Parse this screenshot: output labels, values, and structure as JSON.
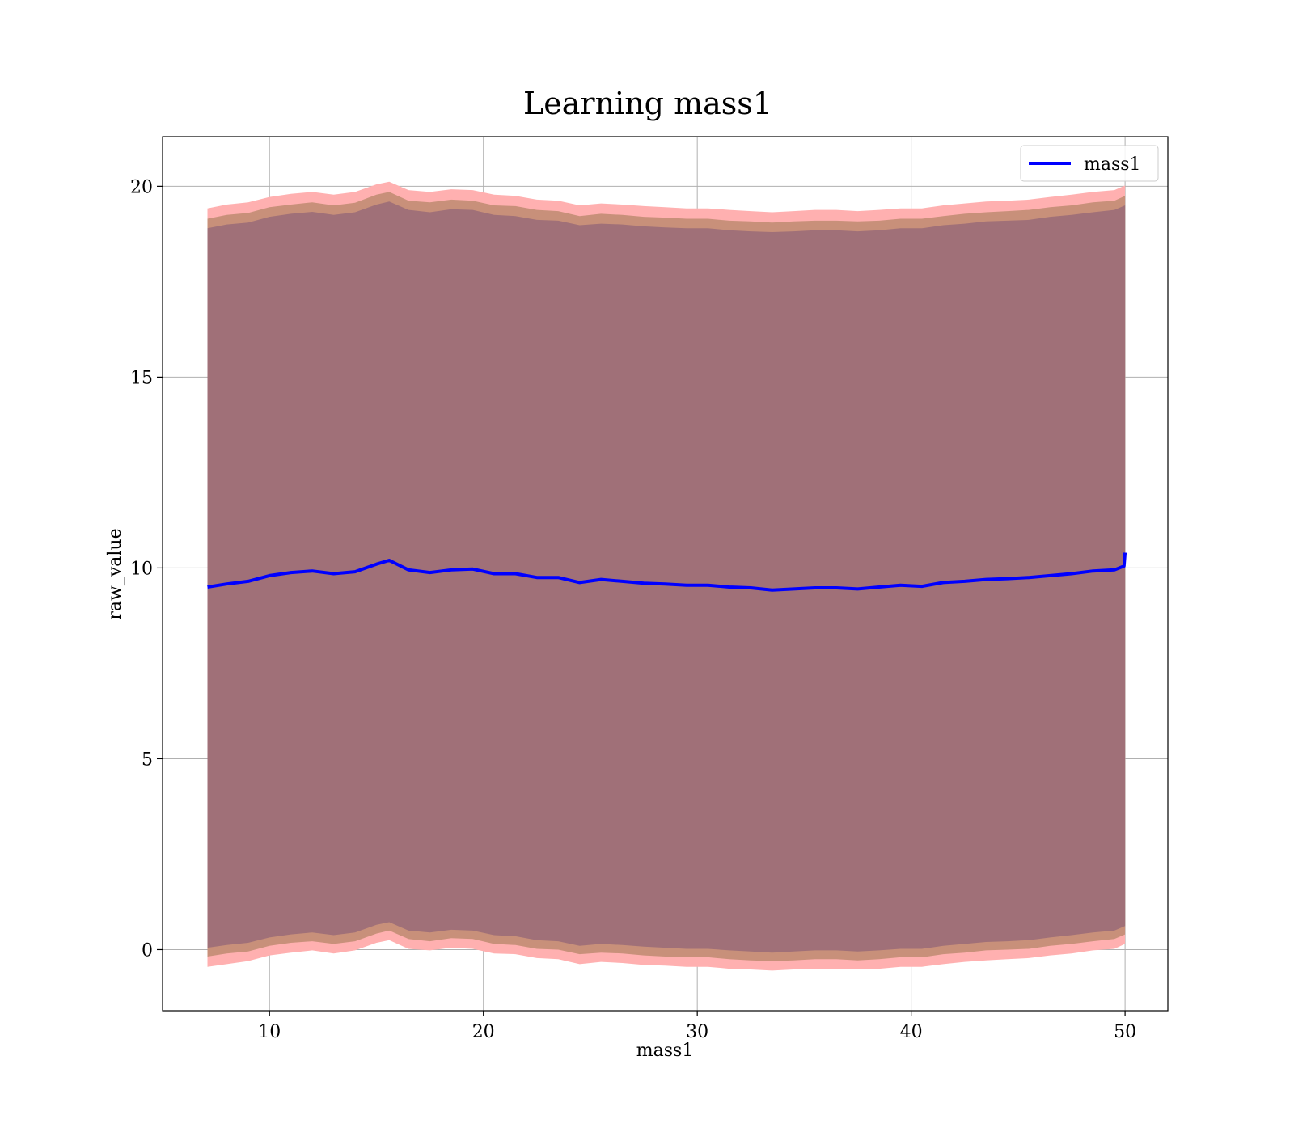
{
  "chart_data": {
    "type": "area",
    "title": "Learning mass1",
    "xlabel": "mass1",
    "ylabel": "raw_value",
    "xlim": [
      5,
      52
    ],
    "ylim": [
      -1.6,
      21.3
    ],
    "xticks": [
      10,
      20,
      30,
      40,
      50
    ],
    "yticks": [
      0,
      5,
      10,
      15,
      20
    ],
    "grid": true,
    "legend": {
      "placement": "top-right",
      "entries": [
        "mass1"
      ]
    },
    "colors": {
      "line": "#0000ff",
      "band_outer": "#ffb0b0",
      "band_middle": "#c8907a",
      "band_inner": "#a07078",
      "grid": "#b0b0b0"
    },
    "series": [
      {
        "name": "mass1",
        "x": [
          7.1,
          8,
          9,
          10,
          11,
          12,
          13,
          14,
          15,
          15.6,
          16.5,
          17.5,
          18.5,
          19.5,
          20.5,
          21.5,
          22.5,
          23.5,
          24.5,
          25.5,
          26.5,
          27.5,
          28.5,
          29.5,
          30.5,
          31.5,
          32.5,
          33.5,
          34.5,
          35.5,
          36.5,
          37.5,
          38.5,
          39.5,
          40.5,
          41.5,
          42.5,
          43.5,
          44.5,
          45.5,
          46.5,
          47.5,
          48.5,
          49.5,
          49.95,
          50
        ],
        "y": [
          9.5,
          9.58,
          9.65,
          9.8,
          9.88,
          9.92,
          9.85,
          9.9,
          10.1,
          10.2,
          9.95,
          9.88,
          9.95,
          9.97,
          9.85,
          9.85,
          9.75,
          9.75,
          9.62,
          9.7,
          9.65,
          9.6,
          9.58,
          9.55,
          9.55,
          9.5,
          9.48,
          9.42,
          9.45,
          9.48,
          9.48,
          9.45,
          9.5,
          9.55,
          9.52,
          9.62,
          9.65,
          9.7,
          9.72,
          9.75,
          9.8,
          9.85,
          9.92,
          9.95,
          10.05,
          10.4
        ]
      }
    ],
    "bands": [
      {
        "x": [
          7.1,
          8,
          9,
          10,
          11,
          12,
          13,
          14,
          15,
          15.6,
          16.5,
          17.5,
          18.5,
          19.5,
          20.5,
          21.5,
          22.5,
          23.5,
          24.5,
          25.5,
          26.5,
          27.5,
          28.5,
          29.5,
          30.5,
          31.5,
          32.5,
          33.5,
          34.5,
          35.5,
          36.5,
          37.5,
          38.5,
          39.5,
          40.5,
          41.5,
          42.5,
          43.5,
          44.5,
          45.5,
          46.5,
          47.5,
          48.5,
          49.5,
          50
        ],
        "outer_upper": [
          19.42,
          19.52,
          19.58,
          19.72,
          19.8,
          19.85,
          19.78,
          19.85,
          20.05,
          20.12,
          19.9,
          19.85,
          19.92,
          19.9,
          19.78,
          19.75,
          19.65,
          19.62,
          19.5,
          19.55,
          19.52,
          19.48,
          19.45,
          19.42,
          19.42,
          19.38,
          19.35,
          19.32,
          19.35,
          19.38,
          19.38,
          19.35,
          19.38,
          19.42,
          19.42,
          19.5,
          19.55,
          19.6,
          19.62,
          19.65,
          19.72,
          19.78,
          19.85,
          19.9,
          20.02
        ],
        "middle_upper": [
          19.15,
          19.25,
          19.3,
          19.45,
          19.52,
          19.58,
          19.5,
          19.57,
          19.78,
          19.85,
          19.62,
          19.58,
          19.65,
          19.62,
          19.5,
          19.48,
          19.38,
          19.35,
          19.22,
          19.28,
          19.25,
          19.2,
          19.18,
          19.15,
          19.15,
          19.1,
          19.08,
          19.05,
          19.08,
          19.1,
          19.1,
          19.08,
          19.1,
          19.15,
          19.15,
          19.22,
          19.28,
          19.32,
          19.35,
          19.38,
          19.45,
          19.5,
          19.58,
          19.62,
          19.75
        ],
        "inner_upper": [
          18.9,
          19.0,
          19.05,
          19.2,
          19.28,
          19.33,
          19.25,
          19.32,
          19.52,
          19.6,
          19.38,
          19.32,
          19.4,
          19.38,
          19.25,
          19.22,
          19.12,
          19.1,
          18.98,
          19.02,
          19.0,
          18.95,
          18.92,
          18.9,
          18.9,
          18.85,
          18.82,
          18.8,
          18.82,
          18.85,
          18.85,
          18.82,
          18.85,
          18.9,
          18.9,
          18.98,
          19.02,
          19.08,
          19.1,
          19.12,
          19.2,
          19.25,
          19.32,
          19.38,
          19.5
        ],
        "inner_lower": [
          0.05,
          0.12,
          0.18,
          0.32,
          0.4,
          0.45,
          0.38,
          0.45,
          0.65,
          0.72,
          0.5,
          0.45,
          0.52,
          0.5,
          0.38,
          0.35,
          0.25,
          0.22,
          0.1,
          0.15,
          0.12,
          0.08,
          0.05,
          0.02,
          0.02,
          -0.02,
          -0.05,
          -0.08,
          -0.05,
          -0.02,
          -0.02,
          -0.05,
          -0.02,
          0.02,
          0.02,
          0.1,
          0.15,
          0.2,
          0.22,
          0.25,
          0.32,
          0.38,
          0.45,
          0.5,
          0.62
        ],
        "middle_lower": [
          -0.18,
          -0.1,
          -0.05,
          0.1,
          0.18,
          0.22,
          0.15,
          0.22,
          0.42,
          0.5,
          0.28,
          0.22,
          0.3,
          0.28,
          0.15,
          0.12,
          0.02,
          0.0,
          -0.12,
          -0.08,
          -0.1,
          -0.15,
          -0.18,
          -0.2,
          -0.2,
          -0.25,
          -0.28,
          -0.3,
          -0.28,
          -0.25,
          -0.25,
          -0.28,
          -0.25,
          -0.2,
          -0.2,
          -0.12,
          -0.08,
          -0.02,
          0.0,
          0.02,
          0.1,
          0.15,
          0.22,
          0.28,
          0.4
        ],
        "outer_lower": [
          -0.45,
          -0.38,
          -0.3,
          -0.15,
          -0.08,
          -0.02,
          -0.1,
          -0.02,
          0.18,
          0.25,
          0.02,
          -0.02,
          0.05,
          0.02,
          -0.1,
          -0.12,
          -0.22,
          -0.25,
          -0.38,
          -0.32,
          -0.35,
          -0.4,
          -0.42,
          -0.45,
          -0.45,
          -0.5,
          -0.52,
          -0.55,
          -0.52,
          -0.5,
          -0.5,
          -0.52,
          -0.5,
          -0.45,
          -0.45,
          -0.38,
          -0.32,
          -0.28,
          -0.25,
          -0.22,
          -0.15,
          -0.1,
          -0.02,
          0.02,
          0.15
        ]
      }
    ]
  }
}
